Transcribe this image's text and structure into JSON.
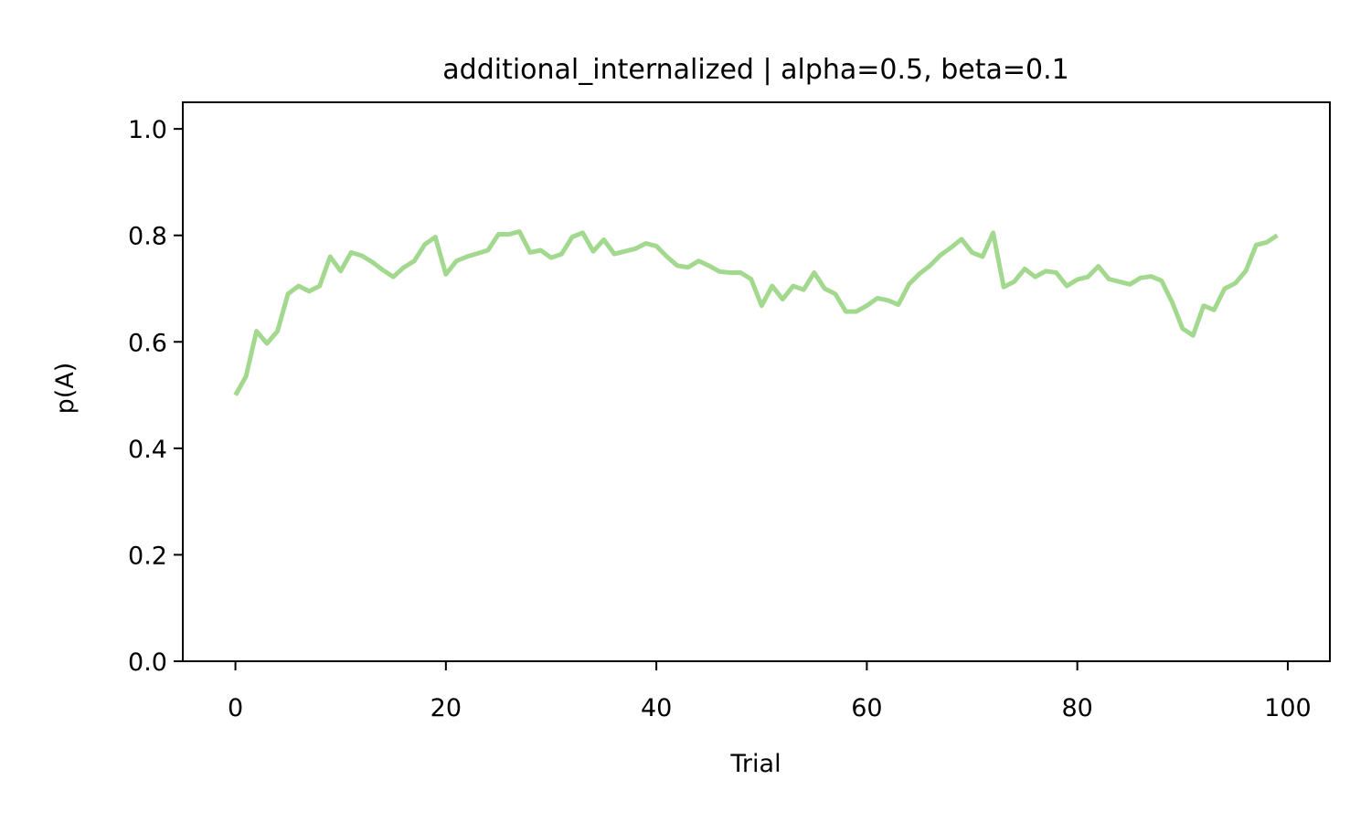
{
  "chart_data": {
    "type": "line",
    "title": "additional_internalized | alpha=0.5, beta=0.1",
    "xlabel": "Trial",
    "ylabel": "p(A)",
    "xlim": [
      -5,
      104
    ],
    "ylim": [
      0.0,
      1.05
    ],
    "x_ticks": [
      0,
      20,
      40,
      60,
      80,
      100
    ],
    "y_ticks": [
      0.0,
      0.2,
      0.4,
      0.6,
      0.8,
      1.0
    ],
    "x_tick_labels": [
      "0",
      "20",
      "40",
      "60",
      "80",
      "100"
    ],
    "y_tick_labels": [
      "0.0",
      "0.2",
      "0.4",
      "0.6",
      "0.8",
      "1.0"
    ],
    "grid": false,
    "legend": false,
    "series": [
      {
        "color": "#a3d98f",
        "x": [
          0,
          1,
          2,
          3,
          4,
          5,
          6,
          7,
          8,
          9,
          10,
          11,
          12,
          13,
          14,
          15,
          16,
          17,
          18,
          19,
          20,
          21,
          22,
          23,
          24,
          25,
          26,
          27,
          28,
          29,
          30,
          31,
          32,
          33,
          34,
          35,
          36,
          37,
          38,
          39,
          40,
          41,
          42,
          43,
          44,
          45,
          46,
          47,
          48,
          49,
          50,
          51,
          52,
          53,
          54,
          55,
          56,
          57,
          58,
          59,
          60,
          61,
          62,
          63,
          64,
          65,
          66,
          67,
          68,
          69,
          70,
          71,
          72,
          73,
          74,
          75,
          76,
          77,
          78,
          79,
          80,
          81,
          82,
          83,
          84,
          85,
          86,
          87,
          88,
          89,
          90,
          91,
          92,
          93,
          94,
          95,
          96,
          97,
          98,
          99
        ],
        "values": [
          0.5,
          0.535,
          0.62,
          0.597,
          0.62,
          0.69,
          0.705,
          0.695,
          0.705,
          0.76,
          0.733,
          0.768,
          0.762,
          0.75,
          0.735,
          0.722,
          0.74,
          0.752,
          0.783,
          0.797,
          0.727,
          0.752,
          0.76,
          0.766,
          0.772,
          0.802,
          0.802,
          0.807,
          0.768,
          0.772,
          0.758,
          0.765,
          0.797,
          0.805,
          0.77,
          0.792,
          0.765,
          0.77,
          0.775,
          0.785,
          0.78,
          0.76,
          0.743,
          0.74,
          0.752,
          0.743,
          0.732,
          0.73,
          0.73,
          0.718,
          0.668,
          0.705,
          0.68,
          0.705,
          0.698,
          0.73,
          0.7,
          0.69,
          0.657,
          0.657,
          0.668,
          0.682,
          0.678,
          0.67,
          0.708,
          0.728,
          0.743,
          0.763,
          0.777,
          0.793,
          0.768,
          0.76,
          0.805,
          0.703,
          0.713,
          0.737,
          0.722,
          0.733,
          0.73,
          0.705,
          0.717,
          0.722,
          0.742,
          0.718,
          0.713,
          0.708,
          0.72,
          0.723,
          0.715,
          0.675,
          0.625,
          0.612,
          0.668,
          0.66,
          0.7,
          0.71,
          0.733,
          0.782,
          0.787,
          0.8
        ]
      }
    ]
  }
}
